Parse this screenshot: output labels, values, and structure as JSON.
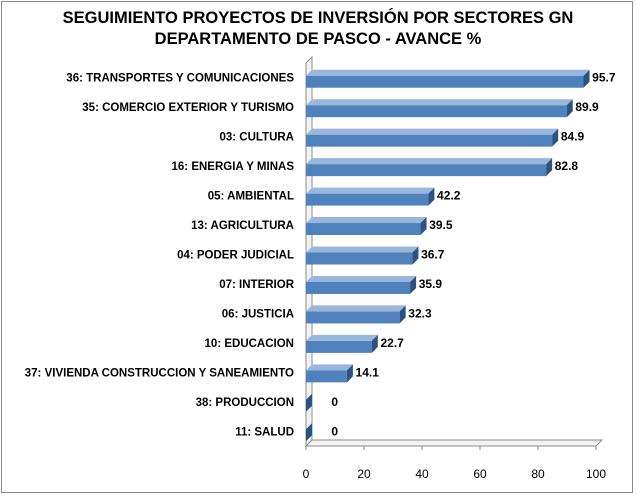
{
  "chart_data": {
    "type": "bar",
    "orientation": "horizontal",
    "title_lines": [
      "SEGUIMIENTO PROYECTOS DE INVERSIÓN POR SECTORES GN",
      "DEPARTAMENTO DE PASCO - AVANCE %"
    ],
    "categories": [
      "36: TRANSPORTES Y COMUNICACIONES",
      "35: COMERCIO EXTERIOR Y TURISMO",
      "03: CULTURA",
      "16: ENERGIA Y MINAS",
      "05: AMBIENTAL",
      "13: AGRICULTURA",
      "04: PODER JUDICIAL",
      "07: INTERIOR",
      "06: JUSTICIA",
      "10: EDUCACION",
      "37: VIVIENDA CONSTRUCCION Y SANEAMIENTO",
      "38: PRODUCCION",
      "11: SALUD"
    ],
    "values": [
      95.7,
      89.9,
      84.9,
      82.8,
      42.2,
      39.5,
      36.7,
      35.9,
      32.3,
      22.7,
      14.1,
      0,
      0
    ],
    "value_labels": [
      "95.7",
      "89.9",
      "84.9",
      "82.8",
      "42.2",
      "39.5",
      "36.7",
      "35.9",
      "32.3",
      "22.7",
      "14.1",
      "0",
      "0"
    ],
    "xlim": [
      0,
      100
    ],
    "xticks": [
      0,
      20,
      40,
      60,
      80,
      100
    ],
    "grid": false,
    "legend": "none",
    "bar_color": "#4f81bd",
    "bar_top_color": "#9ab6dc",
    "bar_side_color": "#2c5282"
  }
}
